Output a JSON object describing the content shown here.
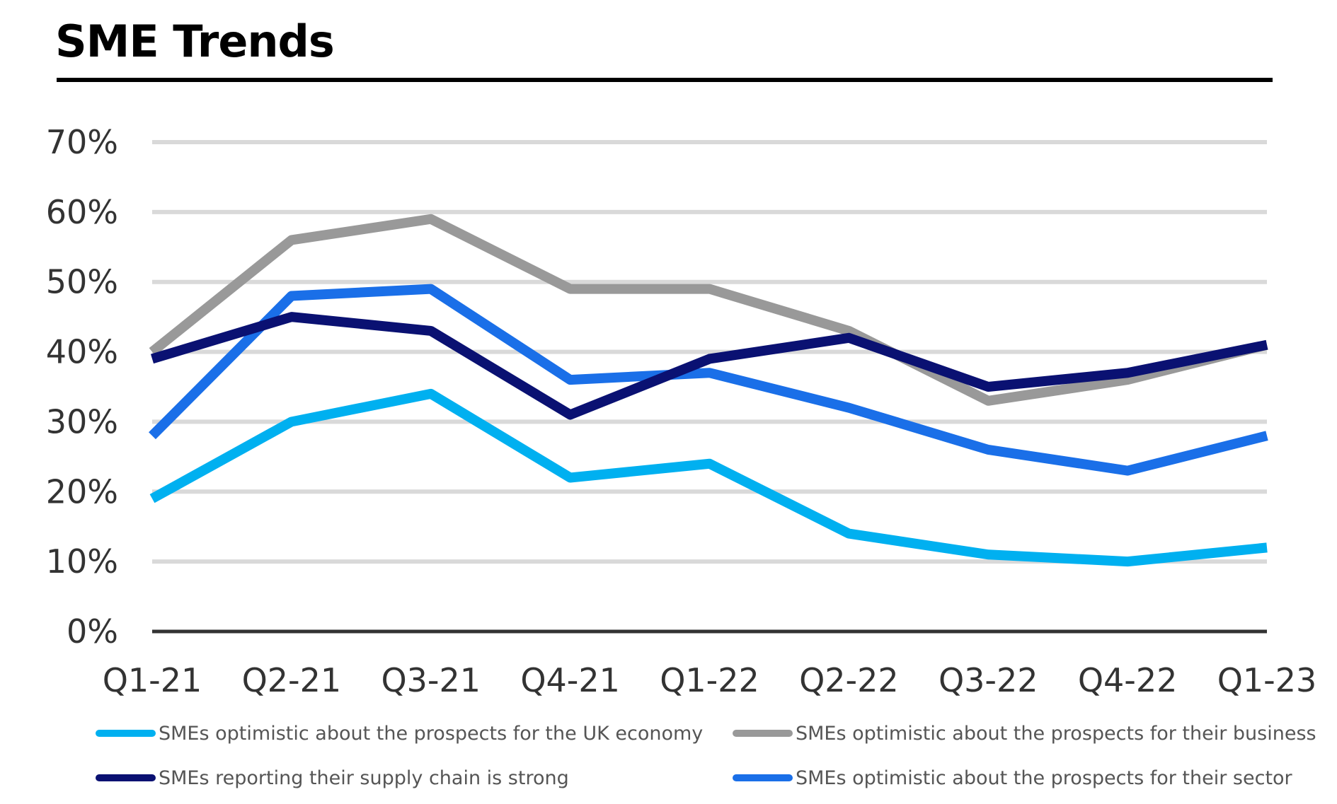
{
  "title": "SME Trends",
  "colors": {
    "grid": "#d9d9d9",
    "axis": "#333333",
    "title_rule": "#000000"
  },
  "chart_data": {
    "type": "line",
    "title": "SME Trends",
    "categories": [
      "Q1-21",
      "Q2-21",
      "Q3-21",
      "Q4-21",
      "Q1-22",
      "Q2-22",
      "Q3-22",
      "Q4-22",
      "Q1-23"
    ],
    "ylim": [
      0,
      70
    ],
    "yticks": [
      "0%",
      "10%",
      "20%",
      "30%",
      "40%",
      "50%",
      "60%",
      "70%"
    ],
    "grid": true,
    "legend_position": "bottom",
    "series": [
      {
        "name": "SMEs optimistic about the prospects for the UK economy",
        "color": "#00b0f0",
        "values": [
          19,
          30,
          34,
          22,
          24,
          14,
          11,
          10,
          12
        ]
      },
      {
        "name": "SMEs optimistic about the prospects for their business",
        "color": "#999999",
        "values": [
          40,
          56,
          59,
          49,
          49,
          43,
          33,
          36,
          41
        ]
      },
      {
        "name": "SMEs reporting their supply chain is strong",
        "color": "#0a1172",
        "values": [
          39,
          45,
          43,
          31,
          39,
          42,
          35,
          37,
          41
        ]
      },
      {
        "name": "SMEs optimistic about the prospects for their sector",
        "color": "#1a6fe8",
        "values": [
          28,
          48,
          49,
          36,
          37,
          32,
          26,
          23,
          28
        ]
      }
    ]
  }
}
